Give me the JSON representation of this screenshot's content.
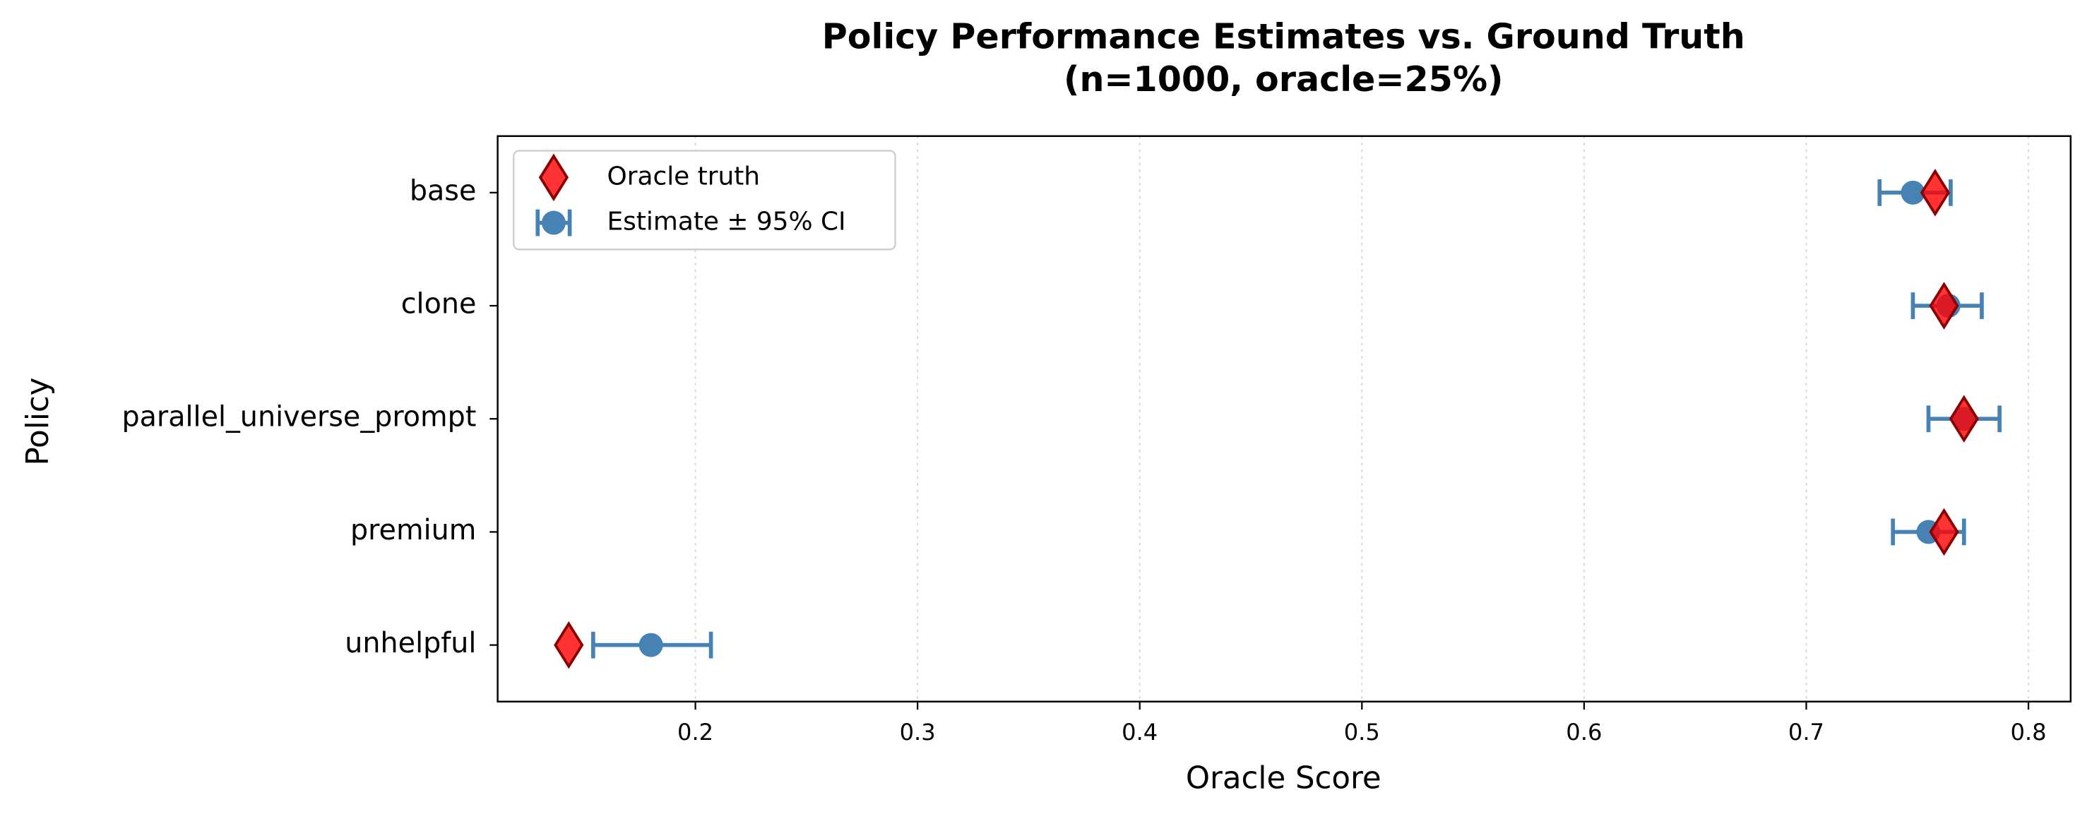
{
  "chart_data": {
    "type": "errorbar",
    "title": "Policy Performance Estimates vs. Ground Truth",
    "subtitle": "(n=1000, oracle=25%)",
    "x_label": "Oracle Score",
    "y_label": "Policy",
    "categories": [
      "base",
      "clone",
      "parallel_universe_prompt",
      "premium",
      "unhelpful"
    ],
    "series": [
      {
        "name": "Oracle truth",
        "color": "#ff0000",
        "edge_color": "#8b0000",
        "marker": "diamond",
        "values": [
          0.758,
          0.762,
          0.771,
          0.762,
          0.143
        ]
      },
      {
        "name": "Estimate ± 95% CI",
        "color": "#4682b4",
        "marker": "circle",
        "values": [
          0.748,
          0.764,
          0.771,
          0.755,
          0.18
        ],
        "ci_lower": [
          0.733,
          0.748,
          0.755,
          0.739,
          0.154
        ],
        "ci_upper": [
          0.765,
          0.779,
          0.787,
          0.771,
          0.207
        ]
      }
    ],
    "xlim": [
      0.111,
      0.819
    ],
    "xticks": [
      0.2,
      0.3,
      0.4,
      0.5,
      0.6,
      0.7,
      0.8
    ],
    "grid": true,
    "legend": "upper left"
  }
}
